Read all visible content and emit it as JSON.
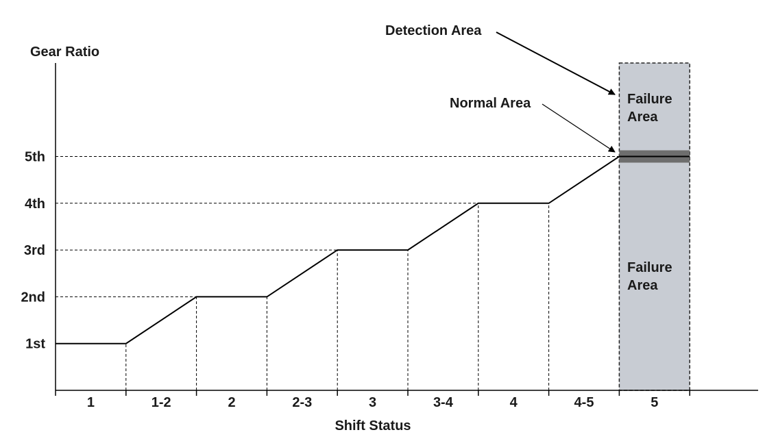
{
  "chart_data": {
    "type": "line",
    "xlabel": "Shift Status",
    "ylabel": "Gear Ratio",
    "categories": [
      "1",
      "1-2",
      "2",
      "2-3",
      "3",
      "3-4",
      "4",
      "4-5",
      "5"
    ],
    "y_levels": [
      "1st",
      "2nd",
      "3rd",
      "4th",
      "5th"
    ],
    "series": [
      {
        "points": [
          [
            0,
            1
          ],
          [
            1,
            1
          ],
          [
            2,
            2
          ],
          [
            3,
            2
          ],
          [
            4,
            3
          ],
          [
            5,
            3
          ],
          [
            6,
            4
          ],
          [
            7,
            4
          ],
          [
            8,
            5
          ],
          [
            9,
            5
          ]
        ]
      }
    ],
    "ylim": [
      0,
      6.5
    ],
    "xlim": [
      0,
      10
    ],
    "grid": "dashed guides to each gear level and at each shift boundary",
    "colors": {
      "line": "#000000",
      "failure_area": "#c8ccd3",
      "normal_band": "#6e6e6e"
    },
    "annotations": {
      "detection_area": "Detection Area",
      "normal_area": "Normal Area",
      "failure_area_upper": [
        "Failure",
        "Area"
      ],
      "failure_area_lower": [
        "Failure",
        "Area"
      ]
    },
    "regions": {
      "failure_column": {
        "x_range": [
          8,
          9
        ]
      },
      "normal_band": {
        "y": 5
      }
    }
  }
}
